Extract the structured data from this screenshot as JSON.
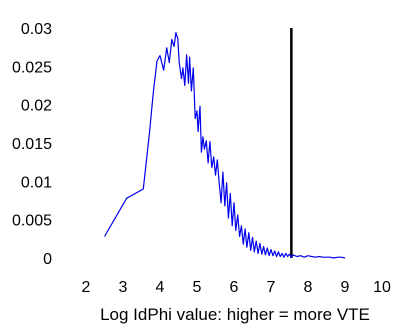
{
  "chart_data": {
    "type": "line",
    "title": "",
    "xlabel": "Log IdPhi value: higher = more VTE",
    "ylabel": "",
    "xlim": [
      2,
      10
    ],
    "ylim": [
      0,
      0.03
    ],
    "x_ticks": [
      2,
      3,
      4,
      5,
      6,
      7,
      8,
      9,
      10
    ],
    "x_tick_labels": [
      "2",
      "3",
      "4",
      "5",
      "6",
      "7",
      "8",
      "9",
      "10"
    ],
    "y_ticks": [
      0,
      0.005,
      0.01,
      0.015,
      0.02,
      0.025,
      0.03
    ],
    "y_tick_labels": [
      "0",
      "0.005",
      "0.01",
      "0.015",
      "0.02",
      "0.025",
      "0.03"
    ],
    "grid": false,
    "box": false,
    "line_color": "#0000ee",
    "vline": {
      "x": 7.55,
      "color": "#000000"
    },
    "series": [
      {
        "x": [
          2.5,
          3.1,
          3.55,
          3.72,
          3.82,
          3.92,
          4.0,
          4.1,
          4.18,
          4.25,
          4.32,
          4.38,
          4.43,
          4.48,
          4.52,
          4.58,
          4.62,
          4.67,
          4.72,
          4.77,
          4.8,
          4.85,
          4.9,
          4.95,
          5.0,
          5.03,
          5.08,
          5.12,
          5.16,
          5.2,
          5.25,
          5.3,
          5.35,
          5.4,
          5.45,
          5.5,
          5.55,
          5.6,
          5.65,
          5.7,
          5.75,
          5.8,
          5.85,
          5.9,
          5.95,
          6.0,
          6.05,
          6.1,
          6.15,
          6.2,
          6.25,
          6.3,
          6.35,
          6.4,
          6.45,
          6.5,
          6.55,
          6.6,
          6.65,
          6.7,
          6.75,
          6.8,
          6.85,
          6.9,
          6.95,
          7.0,
          7.05,
          7.1,
          7.15,
          7.2,
          7.25,
          7.3,
          7.35,
          7.4,
          7.45,
          7.5,
          7.55,
          7.6,
          7.7,
          7.8,
          7.9,
          8.0,
          8.1,
          8.2,
          8.3,
          8.4,
          8.5,
          8.6,
          8.7,
          8.8,
          8.9,
          9.0
        ],
        "y": [
          0.0028,
          0.0078,
          0.009,
          0.0165,
          0.0216,
          0.0257,
          0.0264,
          0.0245,
          0.0274,
          0.0255,
          0.0285,
          0.0276,
          0.0294,
          0.0286,
          0.0255,
          0.0234,
          0.0248,
          0.0225,
          0.0265,
          0.0228,
          0.0262,
          0.0218,
          0.0248,
          0.0182,
          0.0192,
          0.0165,
          0.0198,
          0.0138,
          0.0158,
          0.0142,
          0.0153,
          0.0124,
          0.0152,
          0.0118,
          0.0132,
          0.0108,
          0.0128,
          0.0098,
          0.0072,
          0.0112,
          0.0068,
          0.0098,
          0.0052,
          0.0084,
          0.0042,
          0.0072,
          0.0036,
          0.0056,
          0.0028,
          0.0042,
          0.0018,
          0.0038,
          0.0014,
          0.0033,
          0.001,
          0.0027,
          0.0008,
          0.0022,
          0.0006,
          0.0019,
          0.0005,
          0.0015,
          0.0004,
          0.0013,
          0.0003,
          0.0011,
          0.0003,
          0.0009,
          0.0002,
          0.0008,
          0.0002,
          0.0006,
          0.0001,
          0.0006,
          0.0002,
          0.0005,
          0.0001,
          0.0004,
          0.0002,
          0.0003,
          0.0001,
          0.0003,
          0.0002,
          0.0001,
          0.0002,
          0.0001,
          0.0001,
          0.0001,
          0.0,
          0.0001,
          0.0001,
          0.0
        ]
      }
    ]
  }
}
